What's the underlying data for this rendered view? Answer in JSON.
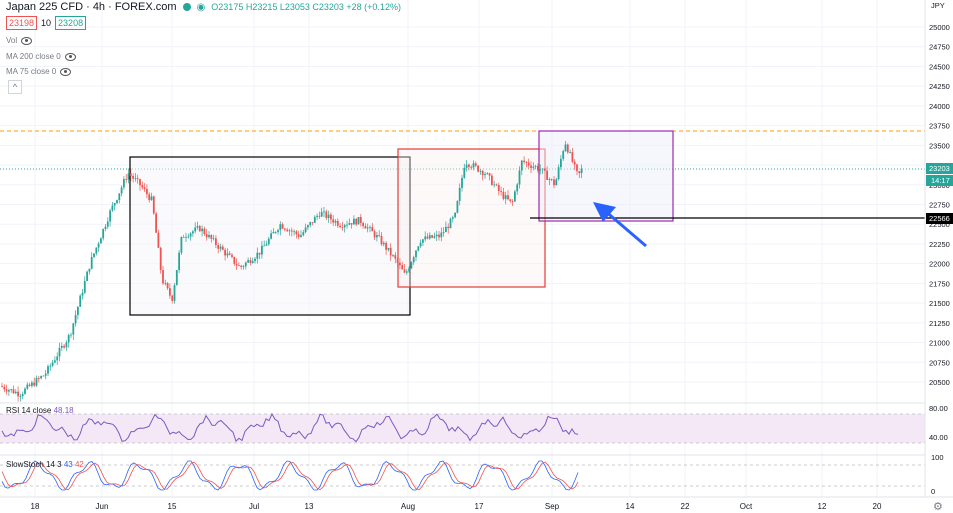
{
  "header": {
    "title": "Japan 225 CFD · 4h · FOREX.com",
    "ohlc": "O23175 H23215 L23053 C23203 +28 (+0.12%)",
    "sell_price": "23198",
    "spread": "10",
    "buy_price": "23208"
  },
  "indicators": {
    "vol": "Vol",
    "ma200": "MA 200 close 0",
    "ma75": "MA 75 close 0"
  },
  "rsi": {
    "label": "RSI 14 close",
    "value": "48.18",
    "levels": [
      "80.00",
      "40.00"
    ]
  },
  "stoch": {
    "label": "SlowStoch 14 3",
    "k": "43",
    "d": "42",
    "levels": [
      "100",
      "0"
    ]
  },
  "currency": "JPY",
  "price_ticks": [
    "25000",
    "24750",
    "24500",
    "24250",
    "24000",
    "23750",
    "23500",
    "23250",
    "23000",
    "22750",
    "22500",
    "22250",
    "22000",
    "21750",
    "21500",
    "21250",
    "21000",
    "20750",
    "20500"
  ],
  "last_price": "23203",
  "countdown": "14:17",
  "line_price": "22566",
  "time_ticks": [
    "18",
    "Jun",
    "15",
    "Jul",
    "13",
    "Aug",
    "17",
    "Sep",
    "14",
    "22",
    "Oct",
    "12",
    "20"
  ],
  "colors": {
    "up": "#26a69a",
    "down": "#ef5350",
    "box1": "#000000",
    "box2": "#e53935",
    "box3": "#9c27b0",
    "arrow": "#2962ff",
    "orange": "#ff9800"
  }
}
